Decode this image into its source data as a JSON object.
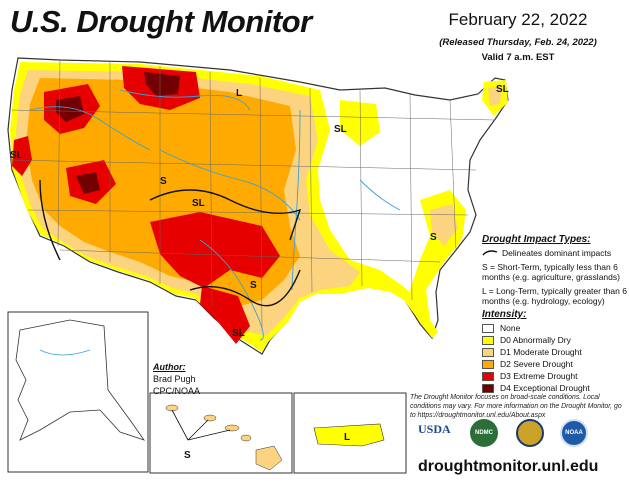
{
  "title": "U.S. Drought Monitor",
  "date": "February 22, 2022",
  "released": "(Released Thursday, Feb. 24, 2022)",
  "valid": "Valid 7 a.m. EST",
  "impact": {
    "title": "Drought Impact Types:",
    "delineates": "Delineates dominant impacts",
    "short_term": "S = Short-Term, typically less than 6 months (e.g. agriculture, grasslands)",
    "long_term": "L = Long-Term, typically greater than 6 months (e.g. hydrology, ecology)"
  },
  "intensity": {
    "title": "Intensity:",
    "levels": [
      {
        "label": "None",
        "color": "#ffffff"
      },
      {
        "label": "D0 Abnormally Dry",
        "color": "#ffff00"
      },
      {
        "label": "D1 Moderate Drought",
        "color": "#fcd37f"
      },
      {
        "label": "D2 Severe Drought",
        "color": "#ffaa00"
      },
      {
        "label": "D3 Extreme Drought",
        "color": "#e60000"
      },
      {
        "label": "D4 Exceptional Drought",
        "color": "#730000"
      }
    ]
  },
  "author": {
    "title": "Author:",
    "name": "Brad Pugh",
    "org": "CPC/NOAA"
  },
  "note": "The Drought Monitor focuses on broad-scale conditions. Local conditions may vary. For more information on the Drought Monitor, go to https://droughtmonitor.unl.edu/About.aspx",
  "url": "droughtmonitor.unl.edu",
  "logos": [
    "USDA",
    "NDMC",
    "commerce-seal",
    "NOAA"
  ],
  "map_labels": [
    "SL",
    "L",
    "SL",
    "SL",
    "SL",
    "S",
    "S",
    "SL",
    "S",
    "L"
  ]
}
